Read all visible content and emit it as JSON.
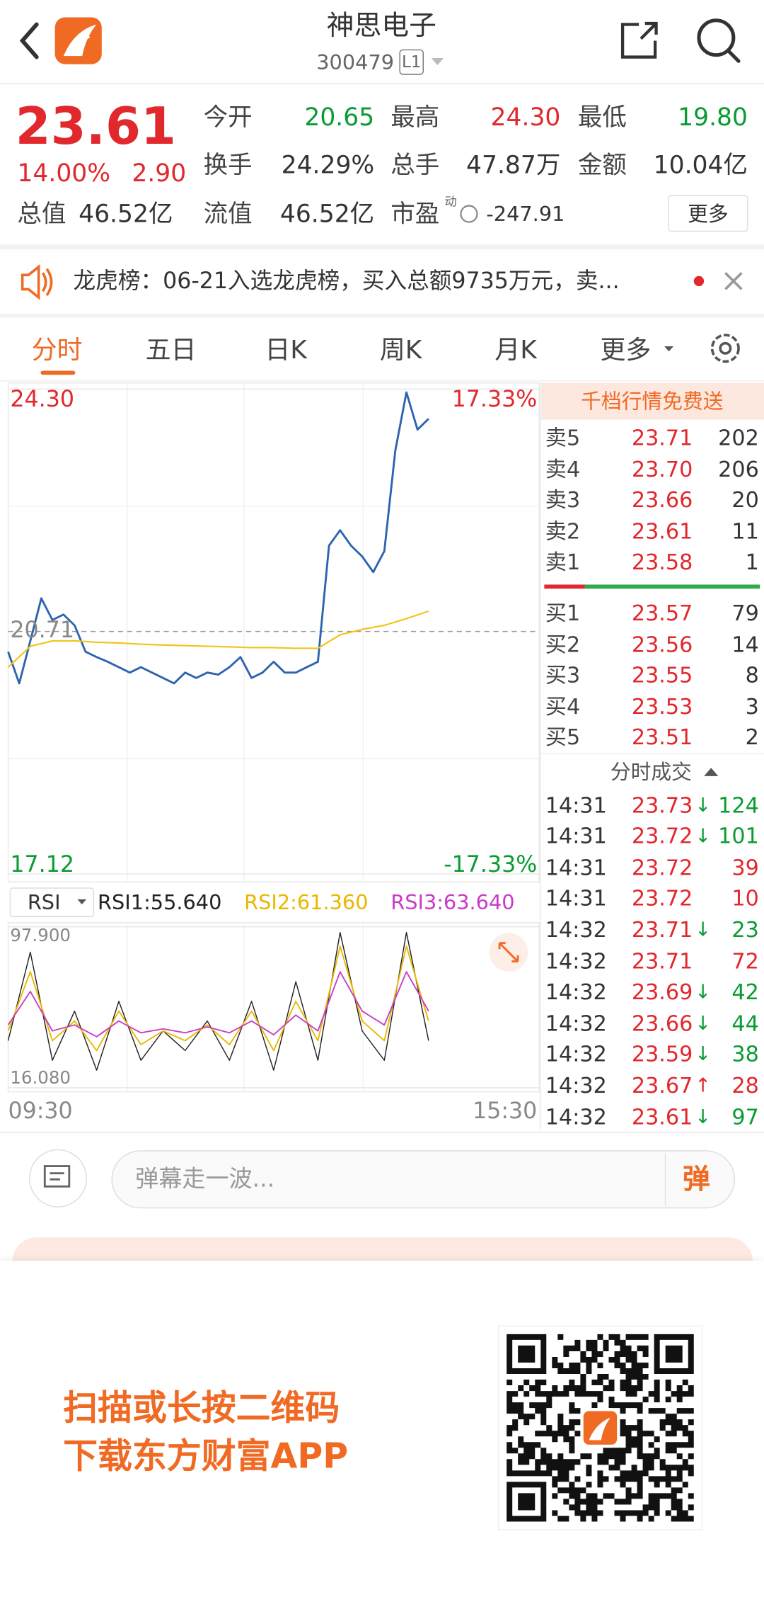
{
  "header": {
    "title": "神思电子",
    "code": "300479",
    "level": "L1"
  },
  "quote": {
    "price": "23.61",
    "change_pct": "14.00%",
    "change": "2.90",
    "stats": [
      {
        "label": "今开",
        "value": "20.65",
        "color": "#0a9c32"
      },
      {
        "label": "最高",
        "value": "24.30",
        "color": "#e0282d"
      },
      {
        "label": "最低",
        "value": "19.80",
        "color": "#0a9c32"
      },
      {
        "label": "换手",
        "value": "24.29%"
      },
      {
        "label": "总手",
        "value": "47.87万"
      },
      {
        "label": "金额",
        "value": "10.04亿"
      },
      {
        "label": "总值",
        "value": "46.52亿"
      },
      {
        "label": "流值",
        "value": "46.52亿"
      },
      {
        "label": "市盈",
        "sup": "动",
        "value": "-247.91"
      }
    ],
    "more": "更多"
  },
  "notice": {
    "text": "龙虎榜：06-21入选龙虎榜，买入总额9735万元，卖..."
  },
  "tabs": [
    "分时",
    "五日",
    "日K",
    "周K",
    "月K",
    "更多"
  ],
  "chart_data": [
    {
      "type": "line",
      "ylim": [
        17.12,
        24.3
      ],
      "yticks": [
        17.12,
        20.71,
        {
          "value": 24.3,
          "label": "24.30"
        }
      ],
      "y2lim": [
        -17.33,
        17.33
      ],
      "y2ticks": [
        {
          "value": -17.33,
          "label": "-17.33%"
        },
        {
          "value": 17.33,
          "label": "17.33%"
        }
      ],
      "xlim": [
        0,
        240
      ],
      "series": [
        {
          "color": "#2e64ae",
          "x": [
            0,
            5,
            10,
            15,
            20,
            25,
            30,
            35,
            40,
            45,
            50,
            55,
            60,
            65,
            70,
            75,
            80,
            85,
            90,
            95,
            100,
            105,
            110,
            115,
            120,
            125,
            130,
            135,
            140,
            145,
            150,
            155,
            160,
            165,
            170,
            175,
            180,
            185,
            190
          ],
          "values": [
            20.41,
            19.94,
            20.57,
            21.2,
            20.88,
            20.96,
            20.8,
            20.41,
            20.33,
            20.26,
            20.18,
            20.1,
            20.18,
            20.1,
            20.02,
            19.94,
            20.1,
            20.02,
            20.1,
            20.07,
            20.18,
            20.33,
            20.02,
            20.1,
            20.26,
            20.1,
            20.1,
            20.18,
            20.26,
            21.98,
            22.21,
            21.98,
            21.82,
            21.59,
            21.9,
            23.39,
            24.25,
            23.7,
            23.86
          ]
        },
        {
          "color": "#f0c419",
          "x": [
            0,
            10,
            20,
            30,
            40,
            50,
            60,
            70,
            80,
            90,
            100,
            110,
            120,
            130,
            140,
            150,
            160,
            170,
            180,
            190
          ],
          "values": [
            20.18,
            20.49,
            20.57,
            20.57,
            20.55,
            20.54,
            20.52,
            20.51,
            20.5,
            20.49,
            20.48,
            20.47,
            20.47,
            20.46,
            20.46,
            20.66,
            20.74,
            20.8,
            20.9,
            21.01
          ]
        }
      ]
    },
    {
      "type": "line",
      "indicator": "RSI",
      "ylim": [
        16.08,
        97.9
      ],
      "yticks": [
        {
          "value": 16.08,
          "label": "16.080"
        },
        {
          "value": 97.9,
          "label": "97.900"
        }
      ],
      "xlim": [
        0,
        240
      ],
      "xticks": [
        {
          "value": 0,
          "label": "09:30"
        },
        {
          "value": 240,
          "label": "15:30"
        }
      ],
      "series": [
        {
          "name": "RSI1:55.640",
          "color": "#222222",
          "x": [
            0,
            10,
            20,
            30,
            40,
            50,
            60,
            70,
            80,
            90,
            100,
            110,
            120,
            130,
            140,
            150,
            160,
            170,
            180,
            190
          ],
          "values": [
            40,
            85,
            30,
            55,
            25,
            60,
            30,
            45,
            35,
            50,
            30,
            60,
            25,
            70,
            30,
            95,
            45,
            30,
            95,
            40
          ]
        },
        {
          "name": "RSI2:61.360",
          "color": "#e8b800",
          "x": [
            0,
            10,
            20,
            30,
            40,
            50,
            60,
            70,
            80,
            90,
            100,
            110,
            120,
            130,
            140,
            150,
            160,
            170,
            180,
            190
          ],
          "values": [
            45,
            75,
            40,
            50,
            35,
            55,
            38,
            45,
            40,
            48,
            38,
            55,
            35,
            60,
            40,
            88,
            50,
            40,
            88,
            50
          ]
        },
        {
          "name": "RSI3:63.640",
          "color": "#c83cc8",
          "x": [
            0,
            10,
            20,
            30,
            40,
            50,
            60,
            70,
            80,
            90,
            100,
            110,
            120,
            130,
            140,
            150,
            160,
            170,
            180,
            190
          ],
          "values": [
            48,
            65,
            45,
            48,
            42,
            50,
            44,
            46,
            44,
            47,
            44,
            50,
            43,
            53,
            45,
            75,
            55,
            48,
            75,
            55
          ]
        }
      ]
    }
  ],
  "order_book": {
    "banner": "千档行情免费送",
    "sell": [
      {
        "label": "卖5",
        "price": "23.71",
        "volume": "202"
      },
      {
        "label": "卖4",
        "price": "23.70",
        "volume": "206"
      },
      {
        "label": "卖3",
        "price": "23.66",
        "volume": "20"
      },
      {
        "label": "卖2",
        "price": "23.61",
        "volume": "11"
      },
      {
        "label": "卖1",
        "price": "23.58",
        "volume": "1"
      }
    ],
    "buy": [
      {
        "label": "买1",
        "price": "23.57",
        "volume": "79"
      },
      {
        "label": "买2",
        "price": "23.56",
        "volume": "14"
      },
      {
        "label": "买3",
        "price": "23.55",
        "volume": "8"
      },
      {
        "label": "买4",
        "price": "23.53",
        "volume": "3"
      },
      {
        "label": "买5",
        "price": "23.51",
        "volume": "2"
      }
    ]
  },
  "trades": {
    "title": "分时成交",
    "rows": [
      {
        "time": "14:31",
        "price": "23.73",
        "arrow": "↓",
        "volume": "124",
        "volume_color": "#0a9c32"
      },
      {
        "time": "14:31",
        "price": "23.72",
        "arrow": "↓",
        "volume": "101",
        "volume_color": "#0a9c32"
      },
      {
        "time": "14:31",
        "price": "23.72",
        "volume": "39",
        "volume_color": "#e0282d"
      },
      {
        "time": "14:31",
        "price": "23.72",
        "volume": "10",
        "volume_color": "#e0282d"
      },
      {
        "time": "14:32",
        "price": "23.71",
        "arrow": "↓",
        "volume": "23",
        "volume_color": "#0a9c32"
      },
      {
        "time": "14:32",
        "price": "23.71",
        "volume": "72",
        "volume_color": "#e0282d"
      },
      {
        "time": "14:32",
        "price": "23.69",
        "arrow": "↓",
        "volume": "42",
        "volume_color": "#0a9c32"
      },
      {
        "time": "14:32",
        "price": "23.66",
        "arrow": "↓",
        "volume": "44",
        "volume_color": "#0a9c32"
      },
      {
        "time": "14:32",
        "price": "23.59",
        "arrow": "↓",
        "volume": "38",
        "volume_color": "#0a9c32"
      },
      {
        "time": "14:32",
        "price": "23.67",
        "arrow": "↑",
        "volume": "28",
        "volume_color": "#e0282d"
      },
      {
        "time": "14:32",
        "price": "23.61",
        "arrow": "↓",
        "volume": "97",
        "volume_color": "#0a9c32"
      }
    ]
  },
  "comment": {
    "placeholder": "弹幕走一波...",
    "button": "弹"
  },
  "promo": {
    "lines": [
      "扫描或长按二维码",
      "下载东方财富APP"
    ]
  }
}
